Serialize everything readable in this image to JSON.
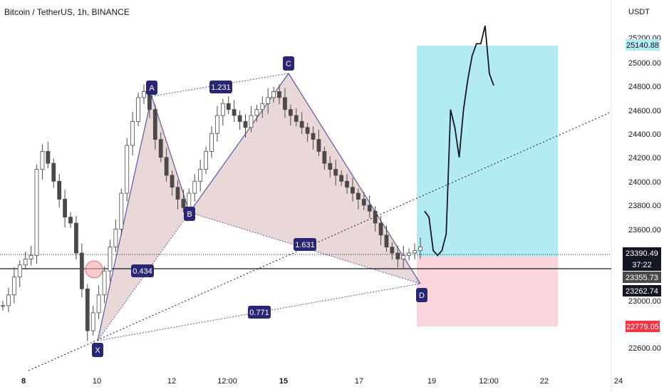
{
  "header": {
    "symbol_title": "Bitcoin / TetherUS, 1h, BINANCE"
  },
  "colors": {
    "candle": "#4a4a4a",
    "pattern_fill": "#d9b7b7",
    "pattern_line": "#5b57a8",
    "label_bg": "#2a2676",
    "target_zone": "#b2ebf2",
    "stop_zone": "#fbd5dc",
    "price_badge_cyan": "#b2ebf2",
    "price_badge_red": "#f23645",
    "price_badge_dark": "#131722"
  },
  "chart_data": {
    "type": "line",
    "title": "Bitcoin / TetherUS, 1h, BINANCE",
    "y_axis": {
      "unit_label": "USDT",
      "ticks": [
        "25200.00",
        "25000.00",
        "24800.00",
        "24600.00",
        "24400.00",
        "24200.00",
        "24000.00",
        "23800.00",
        "23600.00",
        "23400.00",
        "23000.00",
        "22600.00"
      ],
      "ylim": [
        22500,
        25350
      ]
    },
    "x_axis": {
      "ticks": [
        "8",
        "10",
        "12",
        "12:00",
        "15",
        "17",
        "19",
        "12:00",
        "22",
        "24"
      ],
      "bold_ticks": [
        "8",
        "15"
      ]
    },
    "pattern": {
      "name": "XABCD",
      "points": [
        {
          "label": "X",
          "value": 22680
        },
        {
          "label": "A",
          "value": 24850
        },
        {
          "label": "B",
          "value": 23740
        },
        {
          "label": "C",
          "value": 24890
        },
        {
          "label": "D",
          "value": 23130
        }
      ],
      "ratios": [
        {
          "label": "0.434"
        },
        {
          "label": "1.231"
        },
        {
          "label": "1.631"
        },
        {
          "label": "0.771"
        }
      ]
    },
    "price_series_close_approx": [
      22960,
      23050,
      23200,
      23300,
      23350,
      23380,
      24100,
      24250,
      24150,
      24000,
      23850,
      23700,
      23650,
      23400,
      23100,
      22750,
      22900,
      23050,
      23250,
      23450,
      23600,
      23900,
      24300,
      24500,
      24700,
      24750,
      24600,
      24350,
      24200,
      24050,
      23950,
      23850,
      23780,
      23900,
      24000,
      24100,
      24250,
      24400,
      24550,
      24650,
      24600,
      24550,
      24500,
      24450,
      24550,
      24600,
      24650,
      24700,
      24750,
      24700,
      24600,
      24550,
      24500,
      24450,
      24400,
      24350,
      24250,
      24150,
      24100,
      24050,
      24000,
      23950,
      23900,
      23850,
      23800,
      23750,
      23650,
      23550,
      23450,
      23400,
      23350,
      23380,
      23400,
      23420,
      23450
    ],
    "projection_path_approx": [
      23750,
      23700,
      23420,
      23380,
      23420,
      23560,
      24600,
      24450,
      24200,
      24600,
      24850,
      25050,
      25150,
      25150,
      25300,
      24900,
      24800
    ],
    "positions": {
      "entry": 23390.49,
      "target": 25140.88,
      "stop": 22779.05
    },
    "price_badges": [
      {
        "text": "25140.88",
        "kind": "target"
      },
      {
        "text": "23390.49",
        "kind": "current"
      },
      {
        "text": "37:22",
        "kind": "timer"
      },
      {
        "text": "23355.73",
        "kind": "level"
      },
      {
        "text": "23262.74",
        "kind": "level"
      },
      {
        "text": "22779.05",
        "kind": "stop"
      }
    ],
    "grid": false,
    "legend": "none"
  }
}
